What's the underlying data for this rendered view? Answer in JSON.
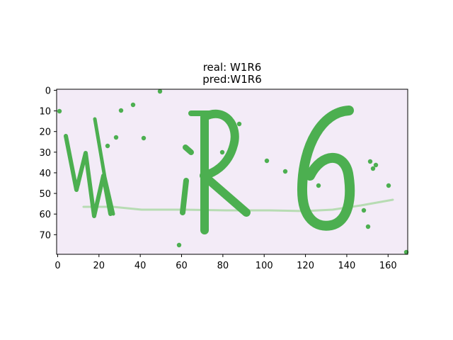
{
  "chart_data": {
    "type": "image",
    "title_lines": [
      "real: W1R6",
      "pred:W1R6"
    ],
    "real_label": "W1R6",
    "predicted_label": "W1R6",
    "image_width": 170,
    "image_height": 80,
    "xlim": [
      -0.5,
      169.5
    ],
    "ylim": [
      79.5,
      -0.5
    ],
    "x_ticks": [
      0,
      20,
      40,
      60,
      80,
      100,
      120,
      140,
      160
    ],
    "y_ticks": [
      0,
      10,
      20,
      30,
      40,
      50,
      60,
      70
    ],
    "background_color": "#f3ebf7",
    "glyph_color": "#4caf50",
    "line_color": "#b7dcb3",
    "characters": [
      "W",
      "1",
      "R",
      "6"
    ]
  }
}
